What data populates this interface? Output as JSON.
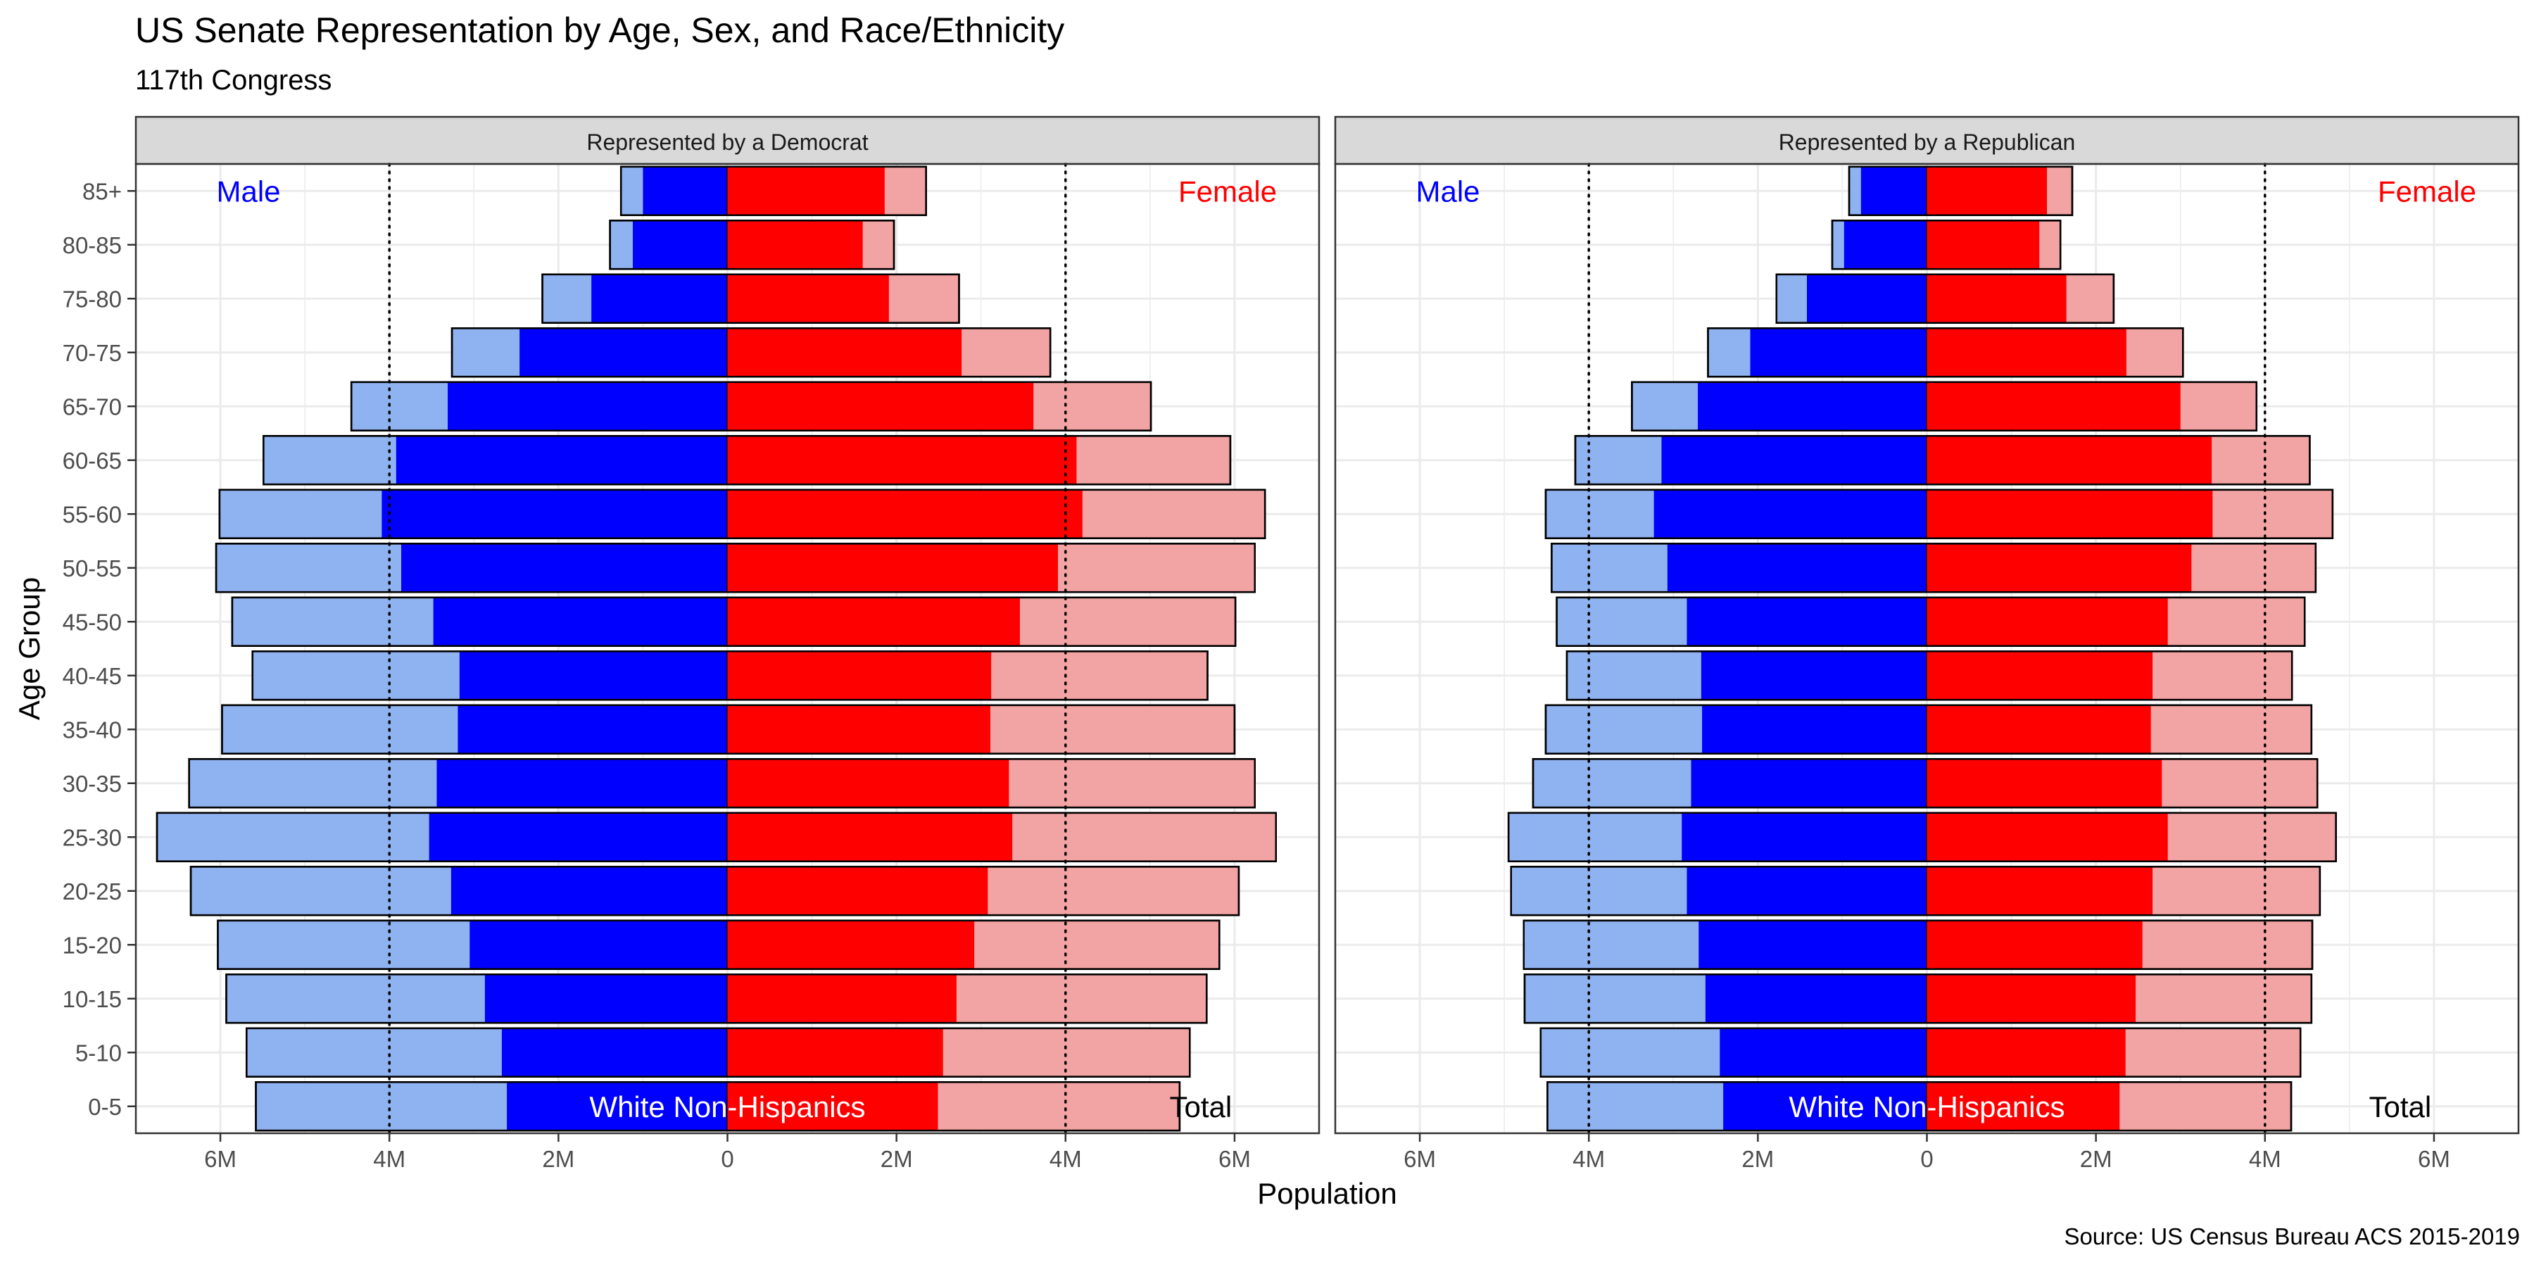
{
  "title": "US Senate Representation by Age, Sex, and Race/Ethnicity",
  "subtitle": "117th Congress",
  "caption": "Source: US Census Bureau ACS 2015-2019",
  "colors": {
    "male_total": "#8fb2f0",
    "male_white": "#0000ff",
    "female_total": "#f2a3a3",
    "female_white": "#ff0000",
    "strip_bg": "#d9d9d9",
    "grid": "#ebebeb"
  },
  "chart_data": {
    "type": "bar",
    "orientation": "horizontal",
    "xlabel": "Population",
    "ylabel": "Age Group",
    "xlim": [
      -7000000,
      7000000
    ],
    "x_tick_labels": [
      "6M",
      "4M",
      "2M",
      "0",
      "2M",
      "4M",
      "6M"
    ],
    "x_tick_values": [
      -6000000,
      -4000000,
      -2000000,
      0,
      2000000,
      4000000,
      6000000
    ],
    "reference_lines": [
      -4000000,
      4000000
    ],
    "reference_line_style": "dotted",
    "grid": true,
    "categories": [
      "0-5",
      "5-10",
      "10-15",
      "15-20",
      "20-25",
      "25-30",
      "30-35",
      "35-40",
      "40-45",
      "45-50",
      "50-55",
      "55-60",
      "60-65",
      "65-70",
      "70-75",
      "75-80",
      "80-85",
      "85+"
    ],
    "panels": [
      {
        "name": "Represented by a Democrat",
        "male_label": "Male",
        "female_label": "Female",
        "white_label": "White Non-Hispanics",
        "total_label": "Total",
        "series": [
          {
            "name": "Male Total",
            "values": [
              5.58,
              5.69,
              5.93,
              6.03,
              6.35,
              6.75,
              6.37,
              5.98,
              5.62,
              5.86,
              6.05,
              6.01,
              5.49,
              4.45,
              3.26,
              2.19,
              1.39,
              1.26
            ]
          },
          {
            "name": "Male White Non-Hispanics",
            "values": [
              2.61,
              2.67,
              2.87,
              3.05,
              3.27,
              3.53,
              3.44,
              3.19,
              3.17,
              3.48,
              3.86,
              4.09,
              3.92,
              3.31,
              2.46,
              1.61,
              1.12,
              1.0
            ]
          },
          {
            "name": "Female Total",
            "values": [
              5.35,
              5.47,
              5.67,
              5.82,
              6.05,
              6.49,
              6.24,
              6.0,
              5.68,
              6.01,
              6.24,
              6.36,
              5.95,
              5.01,
              3.82,
              2.74,
              1.97,
              2.35
            ]
          },
          {
            "name": "Female White Non-Hispanics",
            "values": [
              2.49,
              2.55,
              2.71,
              2.92,
              3.08,
              3.37,
              3.33,
              3.11,
              3.12,
              3.46,
              3.91,
              4.2,
              4.13,
              3.62,
              2.77,
              1.91,
              1.6,
              1.86
            ]
          }
        ]
      },
      {
        "name": "Represented by a Republican",
        "male_label": "Male",
        "female_label": "Female",
        "white_label": "White Non-Hispanics",
        "total_label": "Total",
        "series": [
          {
            "name": "Male Total",
            "values": [
              4.49,
              4.57,
              4.76,
              4.77,
              4.92,
              4.95,
              4.66,
              4.51,
              4.26,
              4.38,
              4.44,
              4.51,
              4.16,
              3.49,
              2.59,
              1.78,
              1.12,
              0.92
            ]
          },
          {
            "name": "Male White Non-Hispanics",
            "values": [
              2.41,
              2.45,
              2.62,
              2.7,
              2.84,
              2.9,
              2.79,
              2.66,
              2.67,
              2.84,
              3.07,
              3.23,
              3.14,
              2.71,
              2.09,
              1.42,
              0.98,
              0.78
            ]
          },
          {
            "name": "Female Total",
            "values": [
              4.31,
              4.42,
              4.55,
              4.56,
              4.65,
              4.84,
              4.62,
              4.55,
              4.32,
              4.47,
              4.6,
              4.8,
              4.53,
              3.9,
              3.03,
              2.21,
              1.58,
              1.72
            ]
          },
          {
            "name": "Female White Non-Hispanics",
            "values": [
              2.28,
              2.35,
              2.47,
              2.55,
              2.67,
              2.85,
              2.78,
              2.65,
              2.67,
              2.85,
              3.13,
              3.38,
              3.37,
              3.0,
              2.36,
              1.65,
              1.33,
              1.42
            ]
          }
        ]
      }
    ],
    "value_units": "millions"
  }
}
